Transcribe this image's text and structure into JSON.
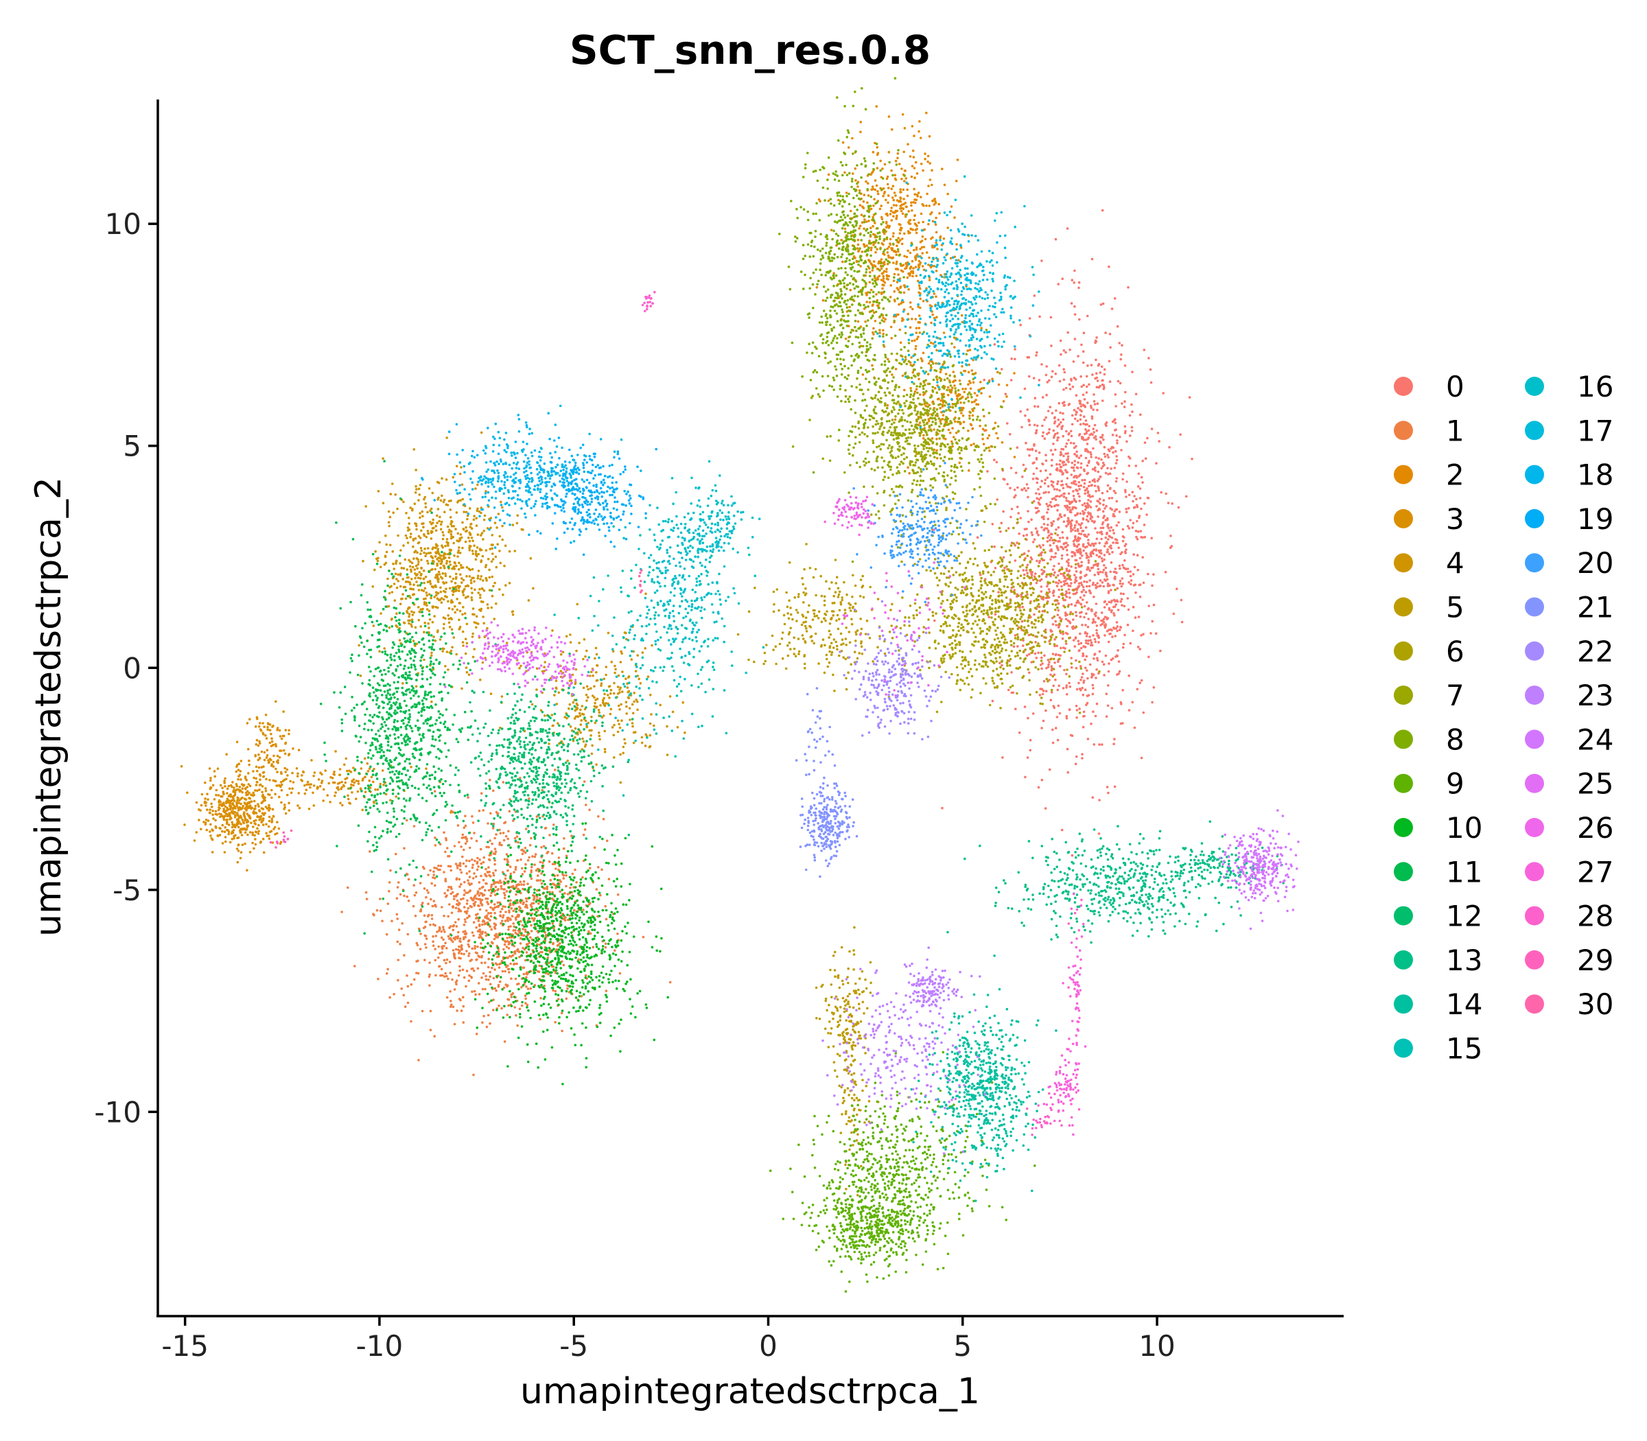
{
  "chart_data": {
    "type": "scatter",
    "title": "SCT_snn_res.0.8",
    "xlabel": "umapintegratedsctrpca_1",
    "ylabel": "umapintegratedsctrpca_2",
    "xlim": [
      -15.7,
      14.8
    ],
    "ylim": [
      -14.6,
      12.8
    ],
    "xticks": [
      -15,
      -10,
      -5,
      0,
      5,
      10
    ],
    "xtick_labels": [
      "-15",
      "-10",
      "-5",
      "0",
      "5",
      "10"
    ],
    "yticks": [
      10,
      5,
      0,
      -5,
      -10
    ],
    "ytick_labels": [
      "10",
      "5",
      "0",
      "-5",
      "-10"
    ],
    "legend_position": "right",
    "legend_columns": 2,
    "grid": false,
    "series": [
      {
        "name": "0",
        "color": "#F8766D",
        "clusters": [
          [
            8.0,
            3.0,
            0.9,
            2.2,
            1800
          ]
        ]
      },
      {
        "name": "1",
        "color": "#EE8044",
        "clusters": [
          [
            -7.0,
            -5.6,
            1.2,
            1.1,
            1300
          ]
        ]
      },
      {
        "name": "2",
        "color": "#E38900",
        "clusters": [
          [
            3.3,
            9.6,
            0.7,
            1.1,
            700
          ],
          [
            4.7,
            6.0,
            0.7,
            0.6,
            250
          ]
        ]
      },
      {
        "name": "3",
        "color": "#DA8F00",
        "clusters": [
          [
            -13.6,
            -3.2,
            0.5,
            0.4,
            500
          ],
          [
            -12.8,
            -2.0,
            0.3,
            0.5,
            120
          ],
          [
            -11.0,
            -2.6,
            0.9,
            0.25,
            150
          ]
        ]
      },
      {
        "name": "4",
        "color": "#CF9400",
        "clusters": [
          [
            -8.4,
            2.2,
            0.8,
            1.0,
            800
          ],
          [
            -4.5,
            -0.8,
            0.9,
            0.7,
            300
          ]
        ]
      },
      {
        "name": "5",
        "color": "#BE9C00",
        "clusters": [
          [
            1.5,
            1.0,
            0.9,
            0.6,
            250
          ],
          [
            2.0,
            -7.8,
            0.3,
            0.6,
            150
          ],
          [
            2.1,
            -9.8,
            0.2,
            0.8,
            80
          ]
        ]
      },
      {
        "name": "6",
        "color": "#AEA200",
        "clusters": [
          [
            5.8,
            1.2,
            1.0,
            0.8,
            800
          ]
        ]
      },
      {
        "name": "7",
        "color": "#9AA800",
        "clusters": [
          [
            3.8,
            5.3,
            0.9,
            0.9,
            800
          ]
        ]
      },
      {
        "name": "8",
        "color": "#7FAE00",
        "clusters": [
          [
            2.0,
            8.8,
            0.6,
            1.5,
            700
          ]
        ]
      },
      {
        "name": "9",
        "color": "#60B200",
        "clusters": [
          [
            3.1,
            -11.4,
            1.0,
            0.9,
            600
          ],
          [
            2.6,
            -12.6,
            0.7,
            0.4,
            400
          ]
        ]
      },
      {
        "name": "10",
        "color": "#00B81F",
        "clusters": [
          [
            -5.3,
            -6.2,
            0.9,
            1.0,
            900
          ]
        ]
      },
      {
        "name": "11",
        "color": "#00BB4E",
        "clusters": [
          [
            -9.4,
            -1.2,
            0.7,
            1.5,
            900
          ]
        ]
      },
      {
        "name": "12",
        "color": "#00BE6C",
        "clusters": [
          [
            -6.0,
            -2.2,
            0.8,
            0.8,
            600
          ]
        ]
      },
      {
        "name": "13",
        "color": "#00BF87",
        "clusters": [
          [
            9.0,
            -4.9,
            1.3,
            0.5,
            500
          ],
          [
            11.5,
            -4.5,
            0.7,
            0.2,
            120
          ]
        ]
      },
      {
        "name": "14",
        "color": "#00C0A0",
        "clusters": [
          [
            5.5,
            -9.5,
            0.6,
            0.8,
            600
          ]
        ]
      },
      {
        "name": "15",
        "color": "#00C1B6",
        "clusters": [
          [
            -3.0,
            0.5,
            1.0,
            1.2,
            200
          ]
        ]
      },
      {
        "name": "16",
        "color": "#00BFCA",
        "clusters": [
          [
            -2.2,
            2.0,
            0.6,
            1.0,
            300
          ],
          [
            -1.4,
            3.2,
            0.4,
            0.4,
            120
          ]
        ]
      },
      {
        "name": "17",
        "color": "#00BCDC",
        "clusters": [
          [
            4.9,
            8.2,
            0.7,
            0.9,
            500
          ]
        ]
      },
      {
        "name": "18",
        "color": "#00B6EB",
        "clusters": [
          [
            -6.3,
            4.3,
            0.9,
            0.5,
            400
          ]
        ]
      },
      {
        "name": "19",
        "color": "#00ADF6",
        "clusters": [
          [
            -4.6,
            3.8,
            0.6,
            0.5,
            300
          ]
        ]
      },
      {
        "name": "20",
        "color": "#3DA1FF",
        "clusters": [
          [
            4.0,
            3.0,
            0.6,
            0.5,
            250
          ]
        ]
      },
      {
        "name": "21",
        "color": "#8494FF",
        "clusters": [
          [
            1.5,
            -3.5,
            0.3,
            0.4,
            250
          ],
          [
            1.3,
            -1.8,
            0.2,
            0.7,
            40
          ]
        ]
      },
      {
        "name": "22",
        "color": "#A58AFF",
        "clusters": [
          [
            3.2,
            -0.3,
            0.5,
            0.6,
            250
          ]
        ]
      },
      {
        "name": "23",
        "color": "#BF80FF",
        "clusters": [
          [
            4.2,
            -7.2,
            0.3,
            0.2,
            120
          ],
          [
            3.5,
            -8.6,
            0.8,
            0.8,
            250
          ]
        ]
      },
      {
        "name": "24",
        "color": "#D376FF",
        "clusters": [
          [
            12.6,
            -4.5,
            0.4,
            0.4,
            300
          ]
        ]
      },
      {
        "name": "25",
        "color": "#E36EF6",
        "clusters": [
          [
            -6.5,
            0.3,
            0.6,
            0.3,
            200
          ],
          [
            -5.2,
            -0.1,
            0.3,
            0.2,
            50
          ]
        ]
      },
      {
        "name": "26",
        "color": "#EF67EA",
        "clusters": [
          [
            2.2,
            3.5,
            0.3,
            0.2,
            80
          ],
          [
            3.5,
            1.0,
            0.7,
            0.8,
            60
          ]
        ]
      },
      {
        "name": "27",
        "color": "#F863DB",
        "clusters": [
          [
            7.9,
            -7.5,
            0.1,
            1.3,
            80
          ],
          [
            7.6,
            -9.4,
            0.2,
            0.3,
            60
          ]
        ]
      },
      {
        "name": "28",
        "color": "#FD61CC",
        "clusters": [
          [
            -3.1,
            8.3,
            0.08,
            0.15,
            20
          ],
          [
            7.2,
            -10.1,
            0.3,
            0.2,
            30
          ]
        ]
      },
      {
        "name": "29",
        "color": "#FF62BC",
        "clusters": [
          [
            -12.5,
            -3.9,
            0.2,
            0.1,
            12
          ]
        ]
      },
      {
        "name": "30",
        "color": "#FF65AB",
        "clusters": [
          [
            -3.3,
            1.8,
            0.05,
            0.2,
            8
          ]
        ]
      }
    ]
  }
}
